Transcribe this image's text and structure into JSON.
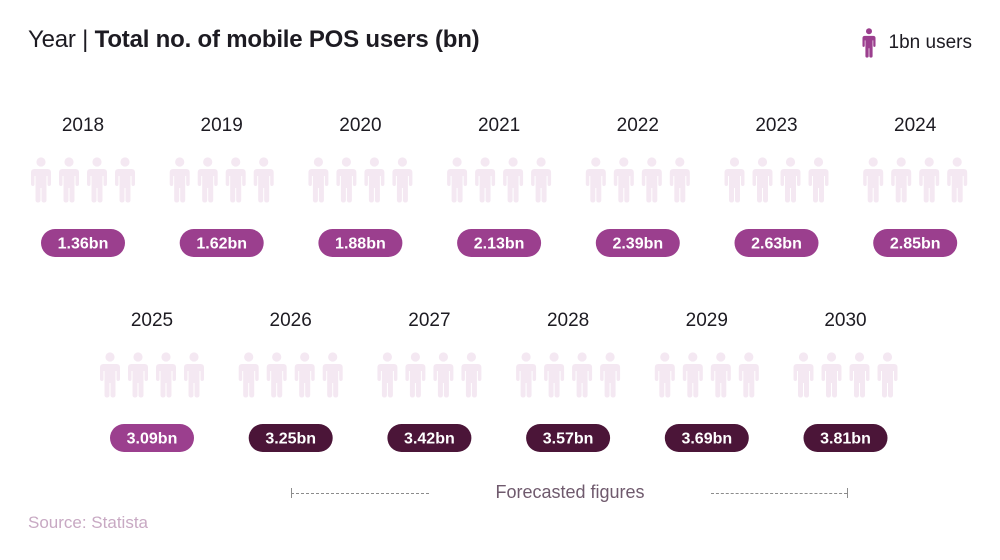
{
  "header": {
    "title_prefix": "Year | ",
    "title_main": "Total no. of mobile POS users (bn)"
  },
  "legend": {
    "label": "1bn users",
    "icon": "person-icon",
    "icon_color": "#9b3f8e"
  },
  "chart_data": {
    "type": "pictogram",
    "title": "Total no. of mobile POS users (bn)",
    "unit_per_icon": 1,
    "max_icons": 4,
    "categories": [
      "2018",
      "2019",
      "2020",
      "2021",
      "2022",
      "2023",
      "2024",
      "2025",
      "2026",
      "2027",
      "2028",
      "2029",
      "2030"
    ],
    "values": [
      1.36,
      1.62,
      1.88,
      2.13,
      2.39,
      2.63,
      2.85,
      3.09,
      3.25,
      3.42,
      3.57,
      3.69,
      3.81
    ],
    "value_labels": [
      "1.36bn",
      "1.62bn",
      "1.88bn",
      "2.13bn",
      "2.39bn",
      "2.63bn",
      "2.85bn",
      "3.09bn",
      "3.25bn",
      "3.42bn",
      "3.57bn",
      "3.69bn",
      "3.81bn"
    ],
    "forecast": [
      false,
      false,
      false,
      false,
      false,
      false,
      false,
      false,
      true,
      true,
      true,
      true,
      true
    ],
    "colors": {
      "actual": "#9b3f8e",
      "forecast": "#4b1538",
      "empty": "#f4e8f2"
    }
  },
  "forecast_note": "Forecasted figures",
  "source": "Source: Statista"
}
